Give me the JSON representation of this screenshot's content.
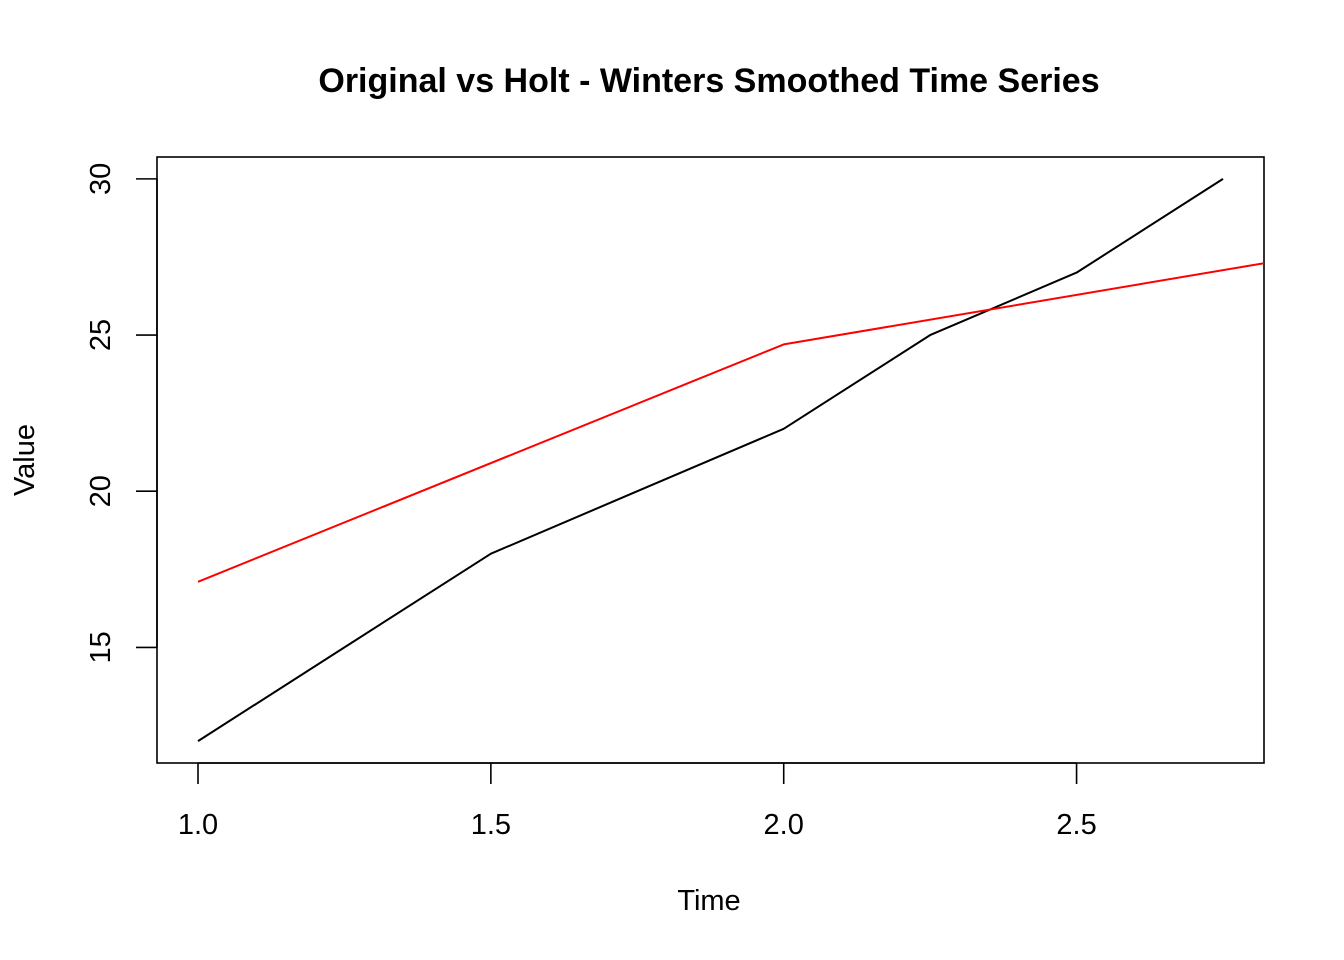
{
  "chart_data": {
    "type": "line",
    "title": "Original vs Holt - Winters Smoothed Time Series",
    "xlabel": "Time",
    "ylabel": "Value",
    "xlim": [
      0.93,
      2.82
    ],
    "ylim": [
      11.3,
      30.7
    ],
    "x_ticks": [
      1.0,
      1.5,
      2.0,
      2.5
    ],
    "x_tick_labels": [
      "1.0",
      "1.5",
      "2.0",
      "2.5"
    ],
    "y_ticks": [
      15,
      20,
      25,
      30
    ],
    "y_tick_labels": [
      "15",
      "20",
      "25",
      "30"
    ],
    "grid": false,
    "series": [
      {
        "color": "#000000",
        "x": [
          1.0,
          1.25,
          1.5,
          1.75,
          2.0,
          2.25,
          2.5,
          2.75
        ],
        "y": [
          12,
          15,
          18,
          20,
          22,
          25,
          27,
          30
        ]
      },
      {
        "color": "#ff0000",
        "x": [
          1.0,
          2.0,
          2.82
        ],
        "y": [
          17.1,
          24.7,
          27.3
        ]
      }
    ]
  }
}
